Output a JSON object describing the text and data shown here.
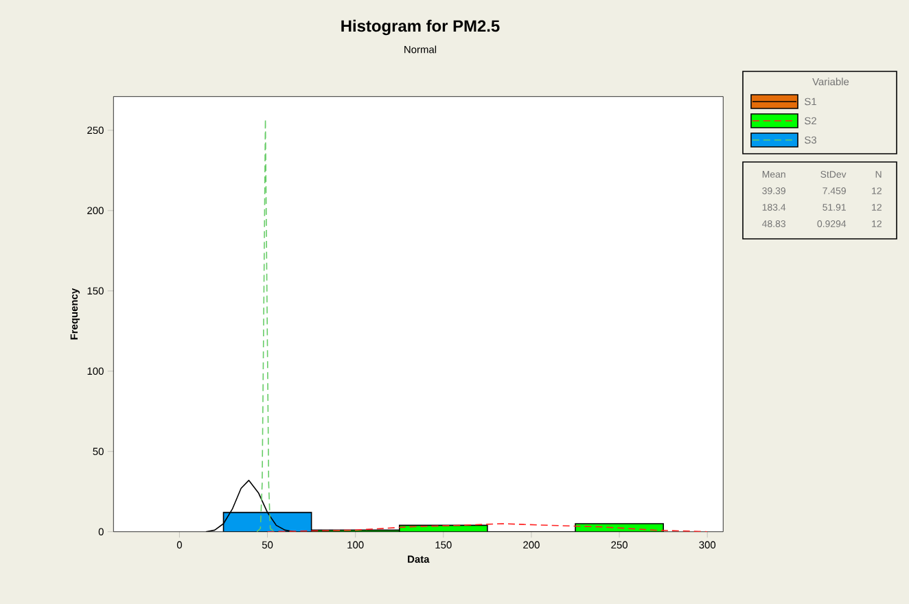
{
  "chart_data": {
    "type": "histogram",
    "title": "Histogram for PM2.5",
    "subtitle": "Normal",
    "xlabel": "Data",
    "ylabel": "Frequency",
    "legend_title": "Variable",
    "legend": "right",
    "xlim": [
      -37.5,
      309
    ],
    "ylim": [
      0,
      271
    ],
    "xticks": [
      0,
      50,
      100,
      150,
      200,
      250,
      300
    ],
    "yticks": [
      0,
      50,
      100,
      150,
      200,
      250
    ],
    "series": [
      {
        "name": "S1",
        "color": "#e46c0a",
        "values": [
          null
        ]
      },
      {
        "name": "S2",
        "color": "#00ff00",
        "bins": [
          75,
          125,
          175,
          225,
          275
        ],
        "values": [
          1,
          4,
          0,
          5
        ]
      },
      {
        "name": "S3",
        "color": "#0099ee",
        "bins": [
          25,
          75
        ],
        "values": [
          12
        ]
      },
      {
        "type": "line",
        "color": "#000000",
        "line_style": "solid",
        "x": [
          15,
          20,
          25,
          30,
          35,
          39.39,
          45,
          50,
          55,
          60,
          65
        ],
        "values": [
          0,
          1,
          5,
          14,
          27,
          32,
          24,
          12,
          4,
          1,
          0
        ]
      },
      {
        "type": "line",
        "color": "#ff2020",
        "line_style": "dashed",
        "x": [
          50,
          100,
          130,
          160,
          183.4,
          210,
          240,
          270,
          300
        ],
        "values": [
          0,
          1,
          3,
          4,
          5,
          4,
          3,
          1,
          0
        ]
      },
      {
        "type": "line",
        "color": "#66cc66",
        "line_style": "dashed",
        "x": [
          44,
          46,
          47,
          48,
          48.83,
          49.7,
          50.7,
          51.6,
          54
        ],
        "values": [
          0,
          2,
          30,
          150,
          257,
          150,
          30,
          2,
          0
        ]
      }
    ],
    "annotations": [
      "Mean",
      "StDev",
      "N",
      "39.39",
      "7.459",
      "12",
      "183.4",
      "51.91",
      "12",
      "48.83",
      "0.9294",
      "12"
    ]
  }
}
